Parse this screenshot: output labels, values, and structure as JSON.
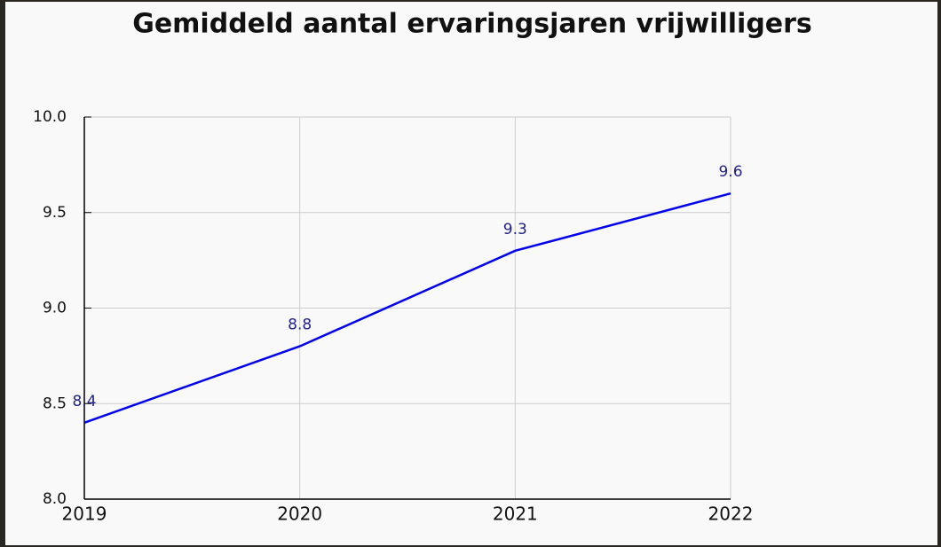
{
  "chart_data": {
    "type": "line",
    "title": "Gemiddeld aantal ervaringsjaren vrijwilligers",
    "categories": [
      "2019",
      "2020",
      "2021",
      "2022"
    ],
    "series": [
      {
        "name": null,
        "color": "#0000ee",
        "values": [
          8.4,
          8.8,
          9.3,
          9.6
        ]
      }
    ],
    "ylim": [
      8.0,
      10.0
    ],
    "yticks": [
      {
        "value": 8.0,
        "label": "8.0"
      },
      8.5,
      {
        "value": 9.0,
        "label": "9.0"
      },
      9.5,
      {
        "value": 10.0,
        "label": "10.0"
      }
    ],
    "grid": true
  }
}
